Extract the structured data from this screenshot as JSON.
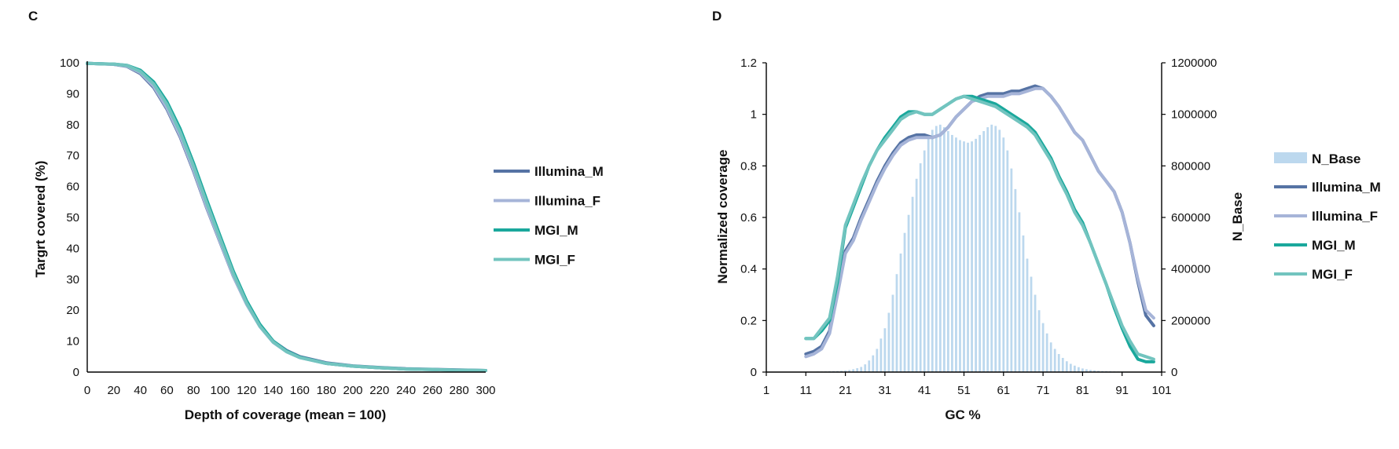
{
  "colors": {
    "illumina_m": "#5673a4",
    "illumina_f": "#a6b4d8",
    "mgi_m": "#1aa89c",
    "mgi_f": "#72c4bf",
    "n_base": "#bcd8ee",
    "axis": "#000000"
  },
  "chart_data": [
    {
      "panel": "C",
      "type": "line",
      "xlabel": "Depth of coverage (mean = 100)",
      "ylabel": "Targrt covered (%)",
      "xlim": [
        0,
        300
      ],
      "ylim": [
        0,
        100
      ],
      "xticks": [
        0,
        20,
        40,
        60,
        80,
        100,
        120,
        140,
        160,
        180,
        200,
        220,
        240,
        260,
        280,
        300
      ],
      "yticks": [
        0,
        10,
        20,
        30,
        40,
        50,
        60,
        70,
        80,
        90,
        100
      ],
      "legend": "right",
      "x": [
        0,
        10,
        20,
        30,
        40,
        50,
        60,
        70,
        80,
        90,
        100,
        110,
        120,
        130,
        140,
        150,
        160,
        180,
        200,
        220,
        240,
        260,
        280,
        300
      ],
      "series": [
        {
          "name": "Illumina_M",
          "color_key": "illumina_m",
          "values": [
            99.8,
            99.7,
            99.5,
            98.8,
            96.5,
            92,
            85,
            76,
            65,
            53,
            42,
            31,
            22,
            15,
            10,
            7,
            5,
            3,
            2,
            1.5,
            1.1,
            0.9,
            0.7,
            0.5
          ]
        },
        {
          "name": "Illumina_F",
          "color_key": "illumina_f",
          "values": [
            99.8,
            99.7,
            99.5,
            98.9,
            96.8,
            92.4,
            85.4,
            76.4,
            65.4,
            53.3,
            42.2,
            31.1,
            21.9,
            14.7,
            9.6,
            6.6,
            4.7,
            2.8,
            1.9,
            1.4,
            1.0,
            0.8,
            0.6,
            0.5
          ]
        },
        {
          "name": "MGI_M",
          "color_key": "mgi_m",
          "values": [
            99.8,
            99.7,
            99.6,
            99.2,
            97.6,
            93.8,
            87.4,
            78.6,
            67.6,
            55.6,
            44,
            32.6,
            23,
            15.4,
            10,
            6.8,
            4.8,
            2.8,
            1.9,
            1.4,
            1.0,
            0.8,
            0.6,
            0.5
          ]
        },
        {
          "name": "MGI_F",
          "color_key": "mgi_f",
          "values": [
            99.8,
            99.7,
            99.6,
            99.1,
            97.2,
            93.2,
            86.6,
            77.6,
            66.6,
            54.6,
            43.1,
            31.8,
            22.3,
            14.8,
            9.7,
            6.6,
            4.7,
            2.8,
            1.9,
            1.4,
            1.0,
            0.8,
            0.6,
            0.5
          ]
        }
      ]
    },
    {
      "panel": "D",
      "type": "line",
      "xlabel": "GC %",
      "ylabel": "Normalized coverage",
      "y2label": "N_Base",
      "xlim": [
        1,
        101
      ],
      "ylim": [
        0,
        1.2
      ],
      "y2lim": [
        0,
        1200000
      ],
      "xticks": [
        1,
        11,
        21,
        31,
        41,
        51,
        61,
        71,
        81,
        91,
        101
      ],
      "yticks": [
        0,
        0.2,
        0.4,
        0.6,
        0.8,
        1,
        1.2
      ],
      "y2ticks": [
        0,
        200000,
        400000,
        600000,
        800000,
        1000000,
        1200000
      ],
      "legend": "right",
      "bars": {
        "name": "N_Base",
        "color_key": "n_base",
        "x": [
          11,
          12,
          13,
          14,
          15,
          16,
          17,
          18,
          19,
          20,
          21,
          22,
          23,
          24,
          25,
          26,
          27,
          28,
          29,
          30,
          31,
          32,
          33,
          34,
          35,
          36,
          37,
          38,
          39,
          40,
          41,
          42,
          43,
          44,
          45,
          46,
          47,
          48,
          49,
          50,
          51,
          52,
          53,
          54,
          55,
          56,
          57,
          58,
          59,
          60,
          61,
          62,
          63,
          64,
          65,
          66,
          67,
          68,
          69,
          70,
          71,
          72,
          73,
          74,
          75,
          76,
          77,
          78,
          79,
          80,
          81,
          82,
          83,
          84,
          85,
          86,
          87,
          88,
          89,
          90,
          91,
          92,
          93,
          94,
          95,
          96,
          97,
          98,
          99,
          100
        ],
        "values": [
          1000,
          1000,
          1500,
          2000,
          2000,
          2500,
          3000,
          3500,
          4000,
          5000,
          6000,
          8000,
          11000,
          15000,
          20000,
          30000,
          45000,
          65000,
          90000,
          130000,
          170000,
          230000,
          300000,
          380000,
          460000,
          540000,
          610000,
          680000,
          750000,
          810000,
          860000,
          905000,
          940000,
          955000,
          960000,
          950000,
          935000,
          920000,
          910000,
          900000,
          895000,
          890000,
          895000,
          905000,
          920000,
          935000,
          950000,
          960000,
          955000,
          940000,
          910000,
          860000,
          790000,
          710000,
          620000,
          530000,
          440000,
          370000,
          300000,
          240000,
          190000,
          150000,
          115000,
          90000,
          70000,
          55000,
          42000,
          32000,
          25000,
          19000,
          14000,
          11000,
          8000,
          6500,
          5000,
          4000,
          3500,
          3000,
          2500,
          2000,
          2000,
          1500,
          1500,
          1000,
          1000,
          1000,
          1000,
          1000,
          1000,
          1000
        ]
      },
      "x": [
        11,
        13,
        15,
        17,
        19,
        21,
        23,
        25,
        27,
        29,
        31,
        33,
        35,
        37,
        39,
        41,
        43,
        45,
        47,
        49,
        51,
        53,
        55,
        57,
        59,
        61,
        63,
        65,
        67,
        69,
        71,
        73,
        75,
        77,
        79,
        81,
        83,
        85,
        87,
        89,
        91,
        93,
        95,
        97,
        99
      ],
      "series": [
        {
          "name": "Illumina_M",
          "color_key": "illumina_m",
          "values": [
            0.07,
            0.08,
            0.1,
            0.16,
            0.32,
            0.47,
            0.52,
            0.6,
            0.67,
            0.74,
            0.8,
            0.85,
            0.89,
            0.91,
            0.92,
            0.92,
            0.91,
            0.92,
            0.95,
            0.99,
            1.02,
            1.05,
            1.07,
            1.08,
            1.08,
            1.08,
            1.09,
            1.09,
            1.1,
            1.11,
            1.1,
            1.07,
            1.03,
            0.98,
            0.93,
            0.9,
            0.84,
            0.78,
            0.74,
            0.7,
            0.62,
            0.5,
            0.35,
            0.22,
            0.18
          ]
        },
        {
          "name": "Illumina_F",
          "color_key": "illumina_f",
          "values": [
            0.06,
            0.07,
            0.09,
            0.15,
            0.3,
            0.46,
            0.51,
            0.59,
            0.66,
            0.73,
            0.79,
            0.84,
            0.88,
            0.9,
            0.91,
            0.91,
            0.91,
            0.92,
            0.95,
            0.99,
            1.02,
            1.05,
            1.06,
            1.07,
            1.07,
            1.07,
            1.08,
            1.08,
            1.09,
            1.1,
            1.1,
            1.07,
            1.03,
            0.98,
            0.93,
            0.9,
            0.84,
            0.78,
            0.74,
            0.7,
            0.62,
            0.5,
            0.36,
            0.24,
            0.21
          ]
        },
        {
          "name": "MGI_M",
          "color_key": "mgi_m",
          "values": [
            0.13,
            0.13,
            0.16,
            0.2,
            0.35,
            0.56,
            0.64,
            0.72,
            0.8,
            0.86,
            0.91,
            0.95,
            0.99,
            1.01,
            1.01,
            1.0,
            1.0,
            1.02,
            1.04,
            1.06,
            1.07,
            1.07,
            1.06,
            1.05,
            1.04,
            1.02,
            1.0,
            0.98,
            0.96,
            0.93,
            0.88,
            0.83,
            0.76,
            0.7,
            0.63,
            0.58,
            0.5,
            0.42,
            0.34,
            0.25,
            0.17,
            0.1,
            0.05,
            0.04,
            0.04
          ]
        },
        {
          "name": "MGI_F",
          "color_key": "mgi_f",
          "values": [
            0.13,
            0.13,
            0.17,
            0.21,
            0.37,
            0.57,
            0.65,
            0.73,
            0.8,
            0.86,
            0.9,
            0.94,
            0.98,
            1.0,
            1.01,
            1.0,
            1.0,
            1.02,
            1.04,
            1.06,
            1.07,
            1.06,
            1.05,
            1.04,
            1.03,
            1.01,
            0.99,
            0.97,
            0.95,
            0.92,
            0.87,
            0.82,
            0.75,
            0.69,
            0.62,
            0.57,
            0.5,
            0.42,
            0.34,
            0.26,
            0.18,
            0.12,
            0.07,
            0.06,
            0.05
          ]
        }
      ]
    }
  ]
}
